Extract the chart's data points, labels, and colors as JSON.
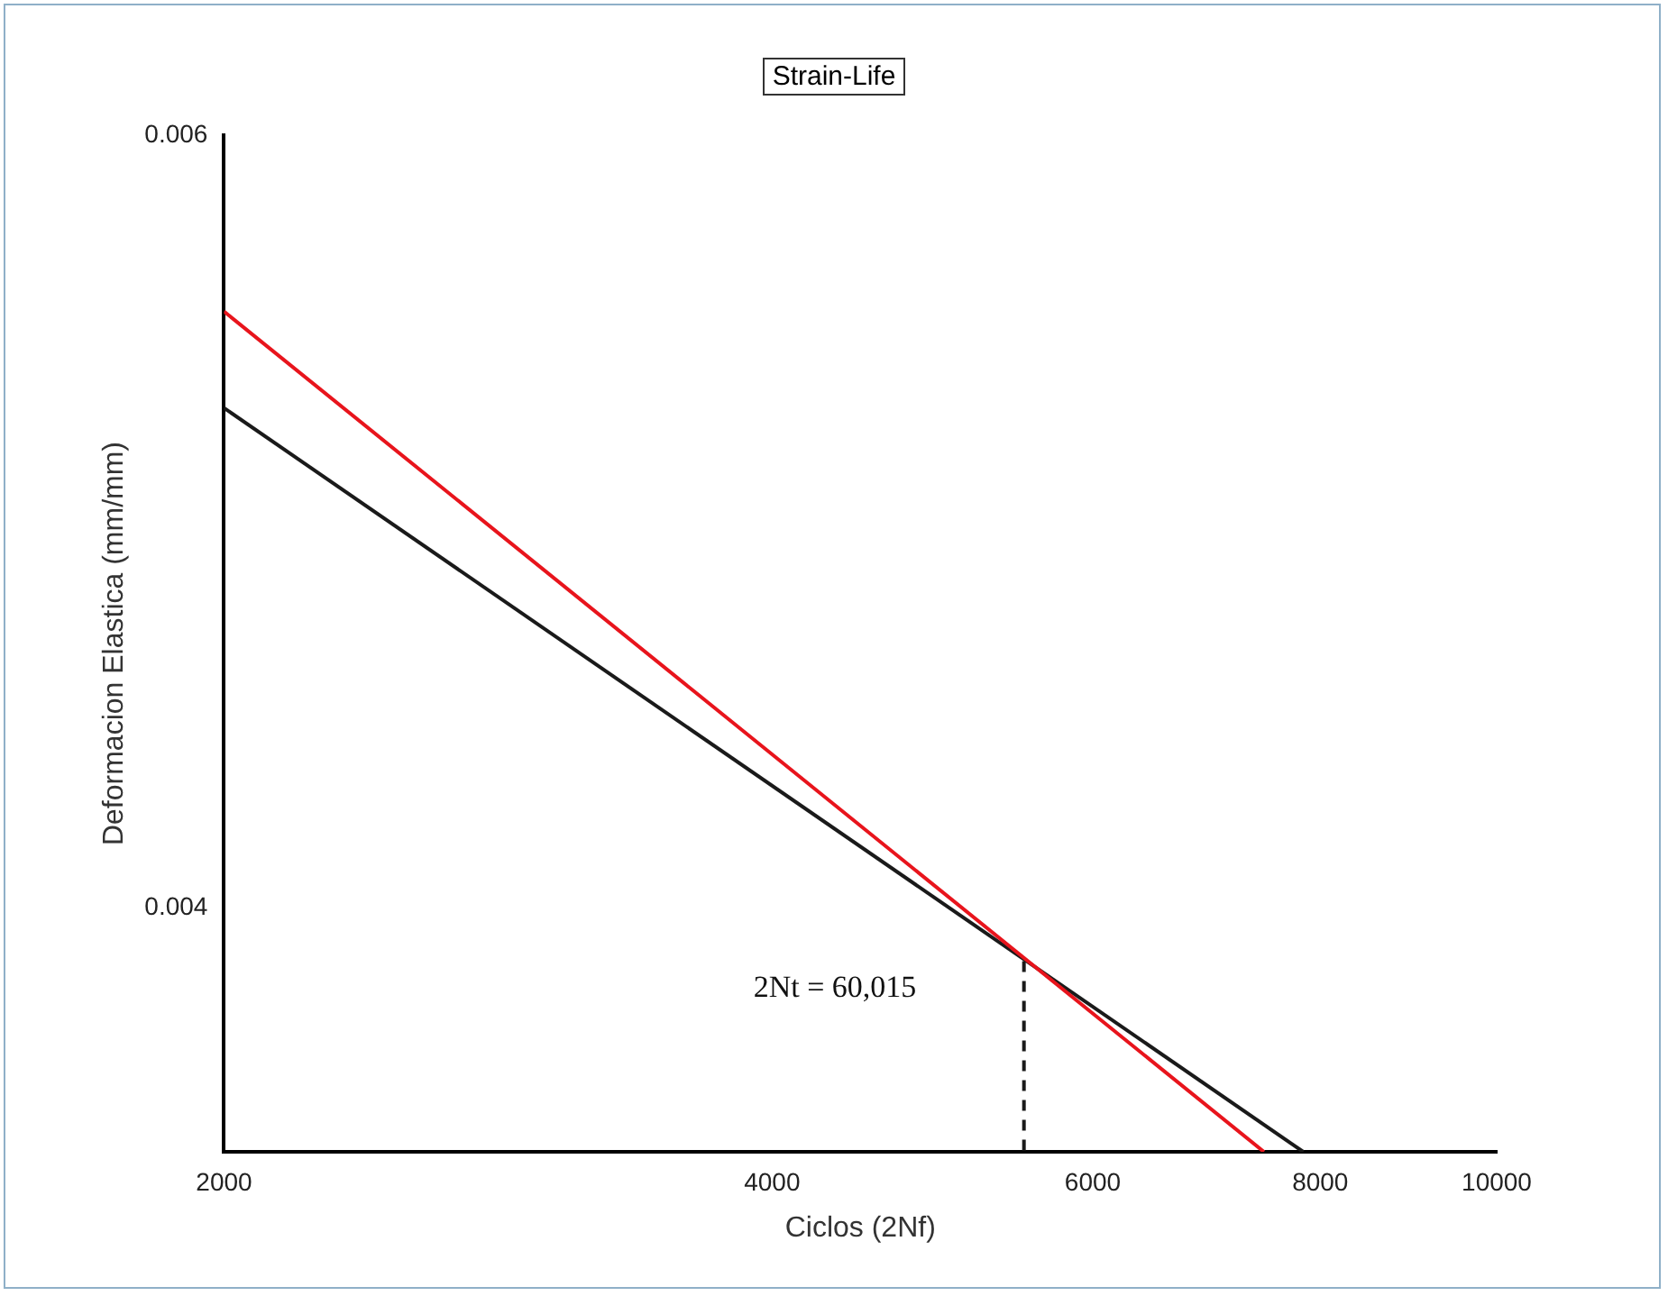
{
  "chart_data": {
    "type": "line",
    "title": "Strain-Life",
    "xlabel": "Ciclos (2Nf)",
    "ylabel": "Deformacion Elastica (mm/mm)",
    "log": "xy",
    "xlim": [
      2000,
      10000
    ],
    "xticks": [
      2000,
      4000,
      6000,
      8000,
      10000
    ],
    "ylim": [
      0.00352,
      0.006
    ],
    "yticks": [
      0.004,
      0.006
    ],
    "series": [
      {
        "color": "#e8141c",
        "x": [
          2000,
          7450
        ],
        "values": [
          0.00547,
          0.00352
        ]
      },
      {
        "color": "#1a1a1a",
        "x": [
          2000,
          7830
        ],
        "values": [
          0.0052,
          0.00352
        ]
      },
      {
        "color": "#1a1a1a",
        "x": [
          5500,
          5500
        ],
        "values": [
          0.00389,
          0.00352
        ],
        "line_style": "dashed"
      }
    ],
    "annotations": [
      "2Nt = 60,015"
    ],
    "grid": false,
    "legend": false,
    "marker": "none",
    "line_style": "solid"
  }
}
